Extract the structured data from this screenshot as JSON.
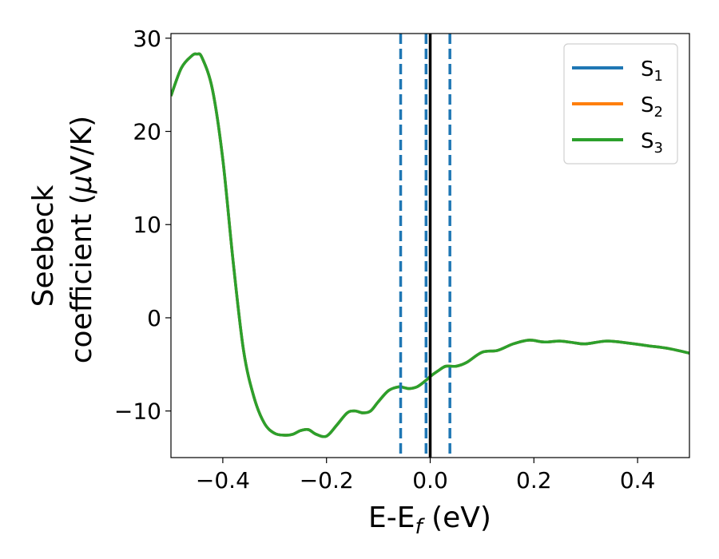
{
  "chart_data": {
    "type": "line",
    "xlabel": "E-E",
    "xlabel_sub": "f",
    "xlabel_suffix": " (eV)",
    "ylabel_line1": "Seebeck",
    "ylabel_line2": "coefficient  (",
    "ylabel_mu": "μ",
    "ylabel_unit": "V/K)",
    "xlim": [
      -0.5,
      0.5
    ],
    "ylim": [
      -15,
      30.5
    ],
    "xticks": [
      -0.4,
      -0.2,
      0.0,
      0.2,
      0.4
    ],
    "xtick_labels": [
      "−0.4",
      "−0.2",
      "0.0",
      "0.2",
      "0.4"
    ],
    "yticks": [
      -10,
      0,
      10,
      20,
      30
    ],
    "ytick_labels": [
      "−10",
      "0",
      "10",
      "20",
      "30"
    ],
    "grid": false,
    "legend_position": "top-right",
    "vlines": [
      {
        "x": -0.057,
        "style": "dashed",
        "color": "#1f77b4"
      },
      {
        "x": -0.008,
        "style": "dashed",
        "color": "#1f77b4"
      },
      {
        "x": 0.038,
        "style": "dashed",
        "color": "#1f77b4"
      },
      {
        "x": 0.0,
        "style": "solid",
        "color": "#000000"
      }
    ],
    "series": [
      {
        "name": "S",
        "sub": "1",
        "color": "#1f77b4"
      },
      {
        "name": "S",
        "sub": "2",
        "color": "#ff7f0e"
      },
      {
        "name": "S",
        "sub": "3",
        "color": "#2ca02c"
      }
    ],
    "x": [
      -0.5,
      -0.48,
      -0.46,
      -0.45,
      -0.44,
      -0.42,
      -0.4,
      -0.38,
      -0.36,
      -0.34,
      -0.32,
      -0.3,
      -0.28,
      -0.265,
      -0.25,
      -0.235,
      -0.22,
      -0.2,
      -0.18,
      -0.16,
      -0.145,
      -0.13,
      -0.115,
      -0.1,
      -0.08,
      -0.06,
      -0.05,
      -0.04,
      -0.025,
      -0.01,
      0.0,
      0.015,
      0.03,
      0.05,
      0.07,
      0.1,
      0.13,
      0.16,
      0.19,
      0.22,
      0.25,
      0.28,
      0.3,
      0.34,
      0.38,
      0.42,
      0.46,
      0.5
    ],
    "y": [
      23.8,
      26.8,
      28.1,
      28.3,
      27.9,
      24.5,
      17.0,
      6.0,
      -3.5,
      -8.5,
      -11.3,
      -12.4,
      -12.6,
      -12.5,
      -12.1,
      -12.0,
      -12.5,
      -12.7,
      -11.5,
      -10.2,
      -10.0,
      -10.2,
      -10.0,
      -9.0,
      -7.8,
      -7.4,
      -7.5,
      -7.6,
      -7.4,
      -6.8,
      -6.3,
      -5.7,
      -5.2,
      -5.2,
      -4.8,
      -3.7,
      -3.5,
      -2.8,
      -2.4,
      -2.6,
      -2.5,
      -2.7,
      -2.8,
      -2.5,
      -2.7,
      -3.0,
      -3.3,
      -3.8
    ]
  }
}
